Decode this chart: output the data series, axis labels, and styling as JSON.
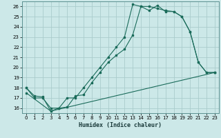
{
  "xlabel": "Humidex (Indice chaleur)",
  "bg_color": "#cce8e8",
  "line_color": "#1a6b5a",
  "grid_color": "#aacccc",
  "xlim": [
    -0.5,
    23.5
  ],
  "ylim": [
    15.5,
    26.5
  ],
  "yticks": [
    16,
    17,
    18,
    19,
    20,
    21,
    22,
    23,
    24,
    25,
    26
  ],
  "xticks": [
    0,
    1,
    2,
    3,
    4,
    5,
    6,
    7,
    8,
    9,
    10,
    11,
    12,
    13,
    14,
    15,
    16,
    17,
    18,
    19,
    20,
    21,
    22,
    23
  ],
  "line1_x": [
    0,
    1,
    2,
    3,
    4,
    5,
    6,
    7,
    8,
    9,
    10,
    11,
    12,
    13,
    14,
    15,
    16,
    17,
    18,
    19,
    20,
    21,
    22,
    23
  ],
  "line1_y": [
    18,
    17,
    17,
    16,
    16,
    17,
    17,
    18,
    19,
    20,
    21,
    22,
    23,
    26.2,
    26,
    26,
    25.8,
    25.6,
    25.5,
    25,
    23.5,
    20.5,
    19.5,
    19.5
  ],
  "line2_x": [
    0,
    1,
    2,
    3,
    4,
    5,
    6,
    7,
    8,
    9,
    10,
    11,
    12,
    13,
    14,
    15,
    16,
    17,
    18,
    19,
    20,
    21,
    22,
    23
  ],
  "line2_y": [
    18,
    17.2,
    17.1,
    15.7,
    16,
    16.1,
    17.2,
    17.3,
    18.5,
    19.5,
    20.5,
    21.2,
    21.8,
    23.2,
    26,
    25.6,
    26.1,
    25.5,
    25.5,
    25,
    23.5,
    20.5,
    19.5,
    19.5
  ],
  "line3_x": [
    0,
    3,
    23
  ],
  "line3_y": [
    17.5,
    15.7,
    19.5
  ]
}
